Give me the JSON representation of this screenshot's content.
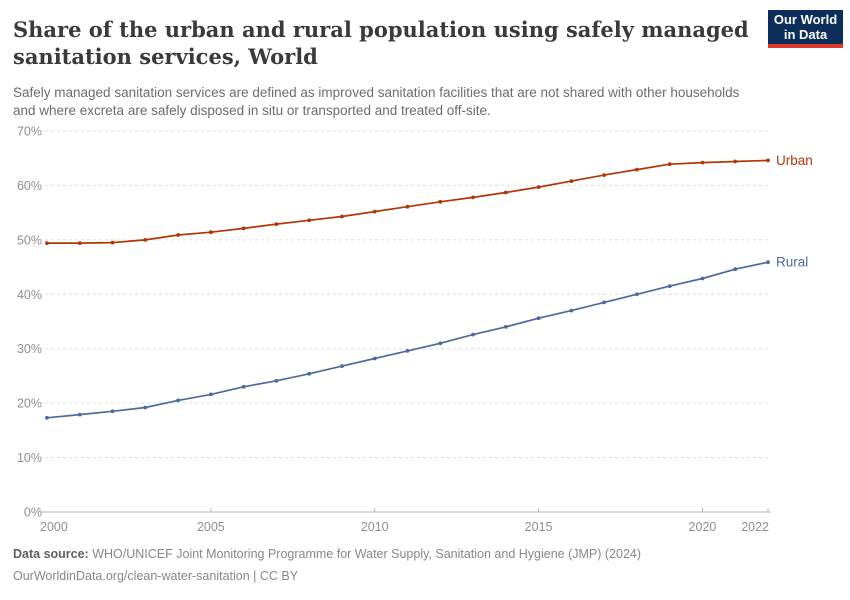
{
  "header": {
    "title": "Share of the urban and rural population using safely managed sanitation services, World",
    "subtitle": "Safely managed sanitation services are defined as improved sanitation facilities that are not shared with other households and where excreta are safely disposed in situ or transported and treated off-site.",
    "logo": {
      "line1": "Our World",
      "line2": "in Data",
      "bg_color": "#0d2e5a",
      "stripe_color": "#dd3a2e"
    }
  },
  "chart_data": {
    "type": "line",
    "title": "Share of the urban and rural population using safely managed sanitation services, World",
    "xlabel": "",
    "ylabel": "",
    "grid": "dashed-horizontal",
    "legend_position": "end-of-line-labels",
    "ylim": [
      0,
      70
    ],
    "yticks": [
      0,
      10,
      20,
      30,
      40,
      50,
      60,
      70
    ],
    "ytick_suffix": "%",
    "xticks": [
      2000,
      2005,
      2010,
      2015,
      2020,
      2022
    ],
    "x": [
      2000,
      2001,
      2002,
      2003,
      2004,
      2005,
      2006,
      2007,
      2008,
      2009,
      2010,
      2011,
      2012,
      2013,
      2014,
      2015,
      2016,
      2017,
      2018,
      2019,
      2020,
      2021,
      2022
    ],
    "series": [
      {
        "name": "Urban",
        "color": "#B13507",
        "values": [
          49.4,
          49.4,
          49.5,
          50.0,
          50.9,
          51.4,
          52.1,
          52.9,
          53.6,
          54.3,
          55.2,
          56.1,
          57.0,
          57.8,
          58.7,
          59.7,
          60.8,
          61.9,
          62.9,
          63.9,
          64.2,
          64.4,
          64.6
        ]
      },
      {
        "name": "Rural",
        "color": "#4C6A9C",
        "values": [
          17.3,
          17.9,
          18.5,
          19.2,
          20.5,
          21.6,
          23.0,
          24.1,
          25.4,
          26.8,
          28.2,
          29.6,
          31.0,
          32.6,
          34.0,
          35.6,
          37.0,
          38.5,
          40.0,
          41.5,
          42.9,
          44.6,
          45.9
        ]
      }
    ],
    "colors": {
      "axis": "#b6b6b6",
      "gridline": "#dedede",
      "tick_text": "#8f8f8f"
    }
  },
  "footer": {
    "datasource_label": "Data source:",
    "datasource_text": "WHO/UNICEF Joint Monitoring Programme for Water Supply, Sanitation and Hygiene (JMP) (2024)",
    "license_line": "OurWorldinData.org/clean-water-sanitation | CC BY"
  }
}
